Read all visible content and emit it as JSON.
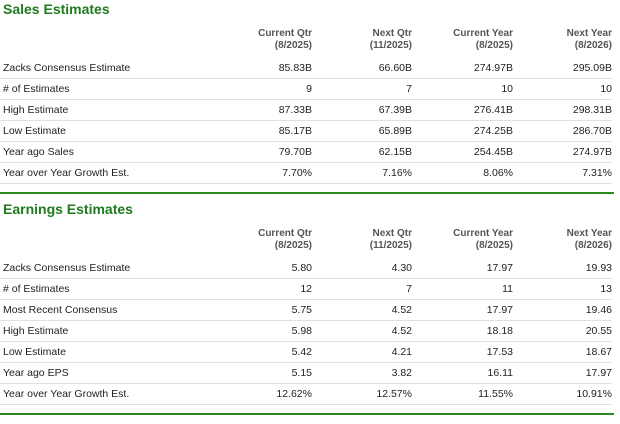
{
  "sections": [
    {
      "title": "Sales Estimates",
      "columns": [
        {
          "name": "Current Qtr",
          "period": "(8/2025)"
        },
        {
          "name": "Next Qtr",
          "period": "(11/2025)"
        },
        {
          "name": "Current Year",
          "period": "(8/2025)"
        },
        {
          "name": "Next Year",
          "period": "(8/2026)"
        }
      ],
      "rows": [
        {
          "label": "Zacks Consensus Estimate",
          "values": [
            "85.83B",
            "66.60B",
            "274.97B",
            "295.09B"
          ]
        },
        {
          "label": "# of Estimates",
          "values": [
            "9",
            "7",
            "10",
            "10"
          ]
        },
        {
          "label": "High Estimate",
          "values": [
            "87.33B",
            "67.39B",
            "276.41B",
            "298.31B"
          ]
        },
        {
          "label": "Low Estimate",
          "values": [
            "85.17B",
            "65.89B",
            "274.25B",
            "286.70B"
          ]
        },
        {
          "label": "Year ago Sales",
          "values": [
            "79.70B",
            "62.15B",
            "254.45B",
            "274.97B"
          ]
        },
        {
          "label": "Year over Year Growth Est.",
          "values": [
            "7.70%",
            "7.16%",
            "8.06%",
            "7.31%"
          ]
        }
      ]
    },
    {
      "title": "Earnings Estimates",
      "columns": [
        {
          "name": "Current Qtr",
          "period": "(8/2025)"
        },
        {
          "name": "Next Qtr",
          "period": "(11/2025)"
        },
        {
          "name": "Current Year",
          "period": "(8/2025)"
        },
        {
          "name": "Next Year",
          "period": "(8/2026)"
        }
      ],
      "rows": [
        {
          "label": "Zacks Consensus Estimate",
          "values": [
            "5.80",
            "4.30",
            "17.97",
            "19.93"
          ]
        },
        {
          "label": "# of Estimates",
          "values": [
            "12",
            "7",
            "11",
            "13"
          ]
        },
        {
          "label": "Most Recent Consensus",
          "values": [
            "5.75",
            "4.52",
            "17.97",
            "19.46"
          ]
        },
        {
          "label": "High Estimate",
          "values": [
            "5.98",
            "4.52",
            "18.18",
            "20.55"
          ]
        },
        {
          "label": "Low Estimate",
          "values": [
            "5.42",
            "4.21",
            "17.53",
            "18.67"
          ]
        },
        {
          "label": "Year ago EPS",
          "values": [
            "5.15",
            "3.82",
            "16.11",
            "17.97"
          ]
        },
        {
          "label": "Year over Year Growth Est.",
          "values": [
            "12.62%",
            "12.57%",
            "11.55%",
            "10.91%"
          ]
        }
      ]
    }
  ]
}
